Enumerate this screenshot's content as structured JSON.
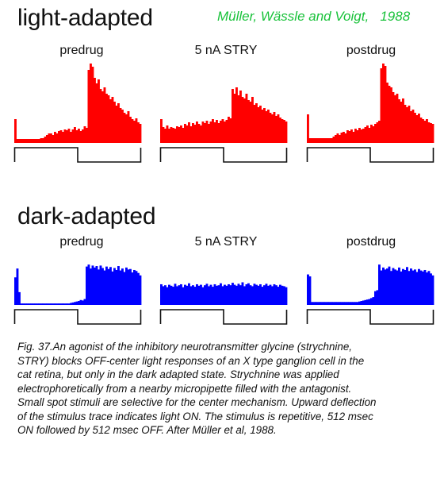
{
  "credit": "Müller, Wässle and Voigt,   1988",
  "sections": [
    {
      "title": "light-adapted",
      "color": "#ff0000"
    },
    {
      "title": "dark-adapted",
      "color": "#0000ff"
    }
  ],
  "panel_labels": [
    "predrug",
    "5 nA STRY",
    "postdrug"
  ],
  "caption_lines": [
    "Fig. 37.An agonist of the inhibitory neurotransmitter glycine (strychnine,",
    "STRY) blocks OFF-center light responses of an X type ganglion cell in the",
    "cat retina, but only in the dark adapted state. Strychnine was applied",
    " electrophoretically from a nearby micropipette filled with the antagonist.",
    " Small spot stimuli are selective for the center mechanism. Upward deflection",
    " of the stimulus trace indicates light ON. The stimulus is repetitive, 512 msec",
    "ON followed by 512 msec OFF. After Müller et al, 1988."
  ],
  "chart_data": [
    {
      "type": "bar",
      "section": "light-adapted",
      "panel": "predrug",
      "color": "#ff0000",
      "stimulus": [
        "ON",
        "OFF"
      ],
      "values": [
        0.3,
        0.05,
        0.05,
        0.05,
        0.05,
        0.05,
        0.05,
        0.05,
        0.05,
        0.05,
        0.05,
        0.05,
        0.05,
        0.06,
        0.06,
        0.08,
        0.1,
        0.12,
        0.12,
        0.1,
        0.14,
        0.12,
        0.15,
        0.16,
        0.14,
        0.17,
        0.16,
        0.18,
        0.14,
        0.17,
        0.2,
        0.16,
        0.18,
        0.15,
        0.17,
        0.21,
        0.19,
        0.92,
        1.0,
        0.96,
        0.82,
        0.75,
        0.8,
        0.68,
        0.65,
        0.7,
        0.62,
        0.6,
        0.55,
        0.58,
        0.52,
        0.47,
        0.5,
        0.44,
        0.42,
        0.38,
        0.36,
        0.4,
        0.33,
        0.3,
        0.28,
        0.31,
        0.26,
        0.24
      ]
    },
    {
      "type": "bar",
      "section": "light-adapted",
      "panel": "5 nA STRY",
      "color": "#ff0000",
      "stimulus": [
        "ON",
        "OFF"
      ],
      "values": [
        0.3,
        0.2,
        0.18,
        0.22,
        0.18,
        0.2,
        0.19,
        0.18,
        0.21,
        0.2,
        0.22,
        0.19,
        0.24,
        0.22,
        0.26,
        0.21,
        0.25,
        0.23,
        0.27,
        0.24,
        0.22,
        0.27,
        0.25,
        0.28,
        0.24,
        0.27,
        0.3,
        0.26,
        0.29,
        0.25,
        0.28,
        0.3,
        0.27,
        0.29,
        0.33,
        0.31,
        0.68,
        0.62,
        0.7,
        0.6,
        0.66,
        0.58,
        0.56,
        0.62,
        0.54,
        0.52,
        0.58,
        0.48,
        0.5,
        0.45,
        0.47,
        0.42,
        0.44,
        0.4,
        0.42,
        0.38,
        0.36,
        0.39,
        0.34,
        0.36,
        0.32,
        0.3,
        0.29,
        0.27
      ]
    },
    {
      "type": "bar",
      "section": "light-adapted",
      "panel": "postdrug",
      "color": "#ff0000",
      "stimulus": [
        "ON",
        "OFF"
      ],
      "values": [
        0.36,
        0.06,
        0.06,
        0.06,
        0.06,
        0.06,
        0.06,
        0.06,
        0.06,
        0.06,
        0.06,
        0.06,
        0.06,
        0.08,
        0.1,
        0.12,
        0.1,
        0.13,
        0.14,
        0.12,
        0.16,
        0.15,
        0.17,
        0.14,
        0.18,
        0.16,
        0.19,
        0.17,
        0.18,
        0.2,
        0.22,
        0.19,
        0.23,
        0.21,
        0.24,
        0.26,
        0.28,
        0.94,
        1.0,
        0.97,
        0.76,
        0.72,
        0.7,
        0.64,
        0.6,
        0.62,
        0.55,
        0.52,
        0.56,
        0.48,
        0.45,
        0.47,
        0.4,
        0.42,
        0.38,
        0.35,
        0.37,
        0.32,
        0.3,
        0.28,
        0.3,
        0.26,
        0.25,
        0.24
      ]
    },
    {
      "type": "bar",
      "section": "dark-adapted",
      "panel": "predrug",
      "color": "#0000ff",
      "stimulus": [
        "ON",
        "OFF"
      ],
      "values": [
        0.56,
        0.74,
        0.26,
        0.03,
        0.03,
        0.03,
        0.03,
        0.03,
        0.03,
        0.03,
        0.03,
        0.03,
        0.03,
        0.03,
        0.03,
        0.03,
        0.03,
        0.03,
        0.03,
        0.03,
        0.03,
        0.03,
        0.03,
        0.03,
        0.03,
        0.03,
        0.03,
        0.03,
        0.04,
        0.05,
        0.06,
        0.07,
        0.08,
        0.1,
        0.09,
        0.12,
        0.78,
        0.82,
        0.74,
        0.8,
        0.76,
        0.79,
        0.72,
        0.8,
        0.75,
        0.7,
        0.78,
        0.73,
        0.77,
        0.68,
        0.75,
        0.71,
        0.79,
        0.7,
        0.74,
        0.67,
        0.76,
        0.72,
        0.73,
        0.66,
        0.71,
        0.69,
        0.65,
        0.6
      ]
    },
    {
      "type": "bar",
      "section": "dark-adapted",
      "panel": "5 nA STRY",
      "color": "#0000ff",
      "stimulus": [
        "ON",
        "OFF"
      ],
      "values": [
        0.42,
        0.38,
        0.4,
        0.36,
        0.41,
        0.39,
        0.37,
        0.43,
        0.38,
        0.4,
        0.42,
        0.36,
        0.41,
        0.39,
        0.44,
        0.38,
        0.4,
        0.37,
        0.42,
        0.39,
        0.41,
        0.36,
        0.4,
        0.43,
        0.38,
        0.41,
        0.37,
        0.42,
        0.39,
        0.4,
        0.44,
        0.38,
        0.41,
        0.39,
        0.42,
        0.4,
        0.45,
        0.41,
        0.39,
        0.43,
        0.4,
        0.46,
        0.38,
        0.42,
        0.44,
        0.4,
        0.38,
        0.43,
        0.41,
        0.39,
        0.42,
        0.37,
        0.4,
        0.43,
        0.39,
        0.41,
        0.38,
        0.42,
        0.4,
        0.37,
        0.41,
        0.39,
        0.38,
        0.36
      ]
    },
    {
      "type": "bar",
      "section": "dark-adapted",
      "panel": "postdrug",
      "color": "#0000ff",
      "stimulus": [
        "ON",
        "OFF"
      ],
      "values": [
        0.62,
        0.58,
        0.06,
        0.06,
        0.06,
        0.06,
        0.06,
        0.06,
        0.06,
        0.06,
        0.06,
        0.06,
        0.06,
        0.06,
        0.06,
        0.06,
        0.06,
        0.06,
        0.06,
        0.06,
        0.06,
        0.06,
        0.06,
        0.06,
        0.06,
        0.06,
        0.07,
        0.08,
        0.09,
        0.1,
        0.11,
        0.12,
        0.14,
        0.16,
        0.28,
        0.3,
        0.82,
        0.7,
        0.76,
        0.72,
        0.74,
        0.78,
        0.69,
        0.75,
        0.72,
        0.7,
        0.76,
        0.68,
        0.73,
        0.71,
        0.77,
        0.69,
        0.74,
        0.7,
        0.72,
        0.67,
        0.73,
        0.7,
        0.68,
        0.71,
        0.66,
        0.69,
        0.64,
        0.6
      ]
    }
  ]
}
